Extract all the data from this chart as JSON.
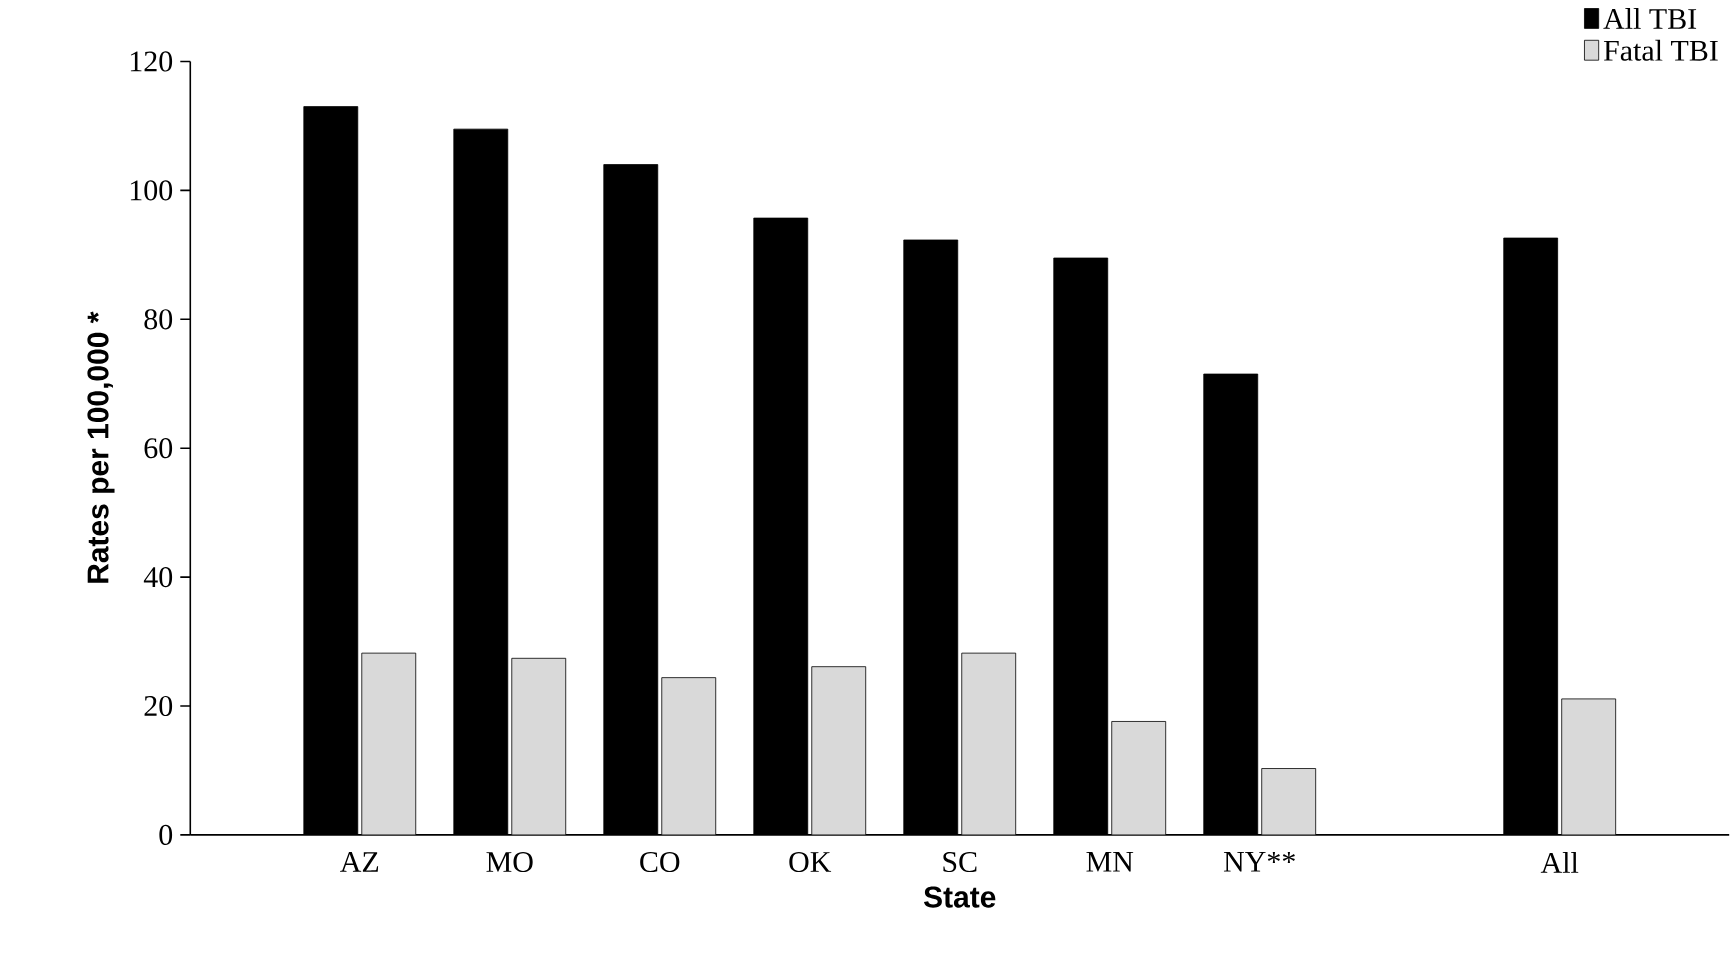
{
  "chart_data": {
    "type": "bar",
    "xlabel": "State",
    "ylabel": "Rates per 100,000 *",
    "categories": [
      "AZ",
      "MO",
      "CO",
      "OK",
      "SC",
      "MN",
      "NY**",
      null,
      "All"
    ],
    "series": [
      {
        "name": "All TBI",
        "color": "#000000",
        "values": [
          113,
          109.5,
          104,
          95.7,
          92.3,
          89.5,
          71.5,
          null,
          92.6
        ]
      },
      {
        "name": "Fatal TBI",
        "color": "#d9d9d9",
        "values": [
          28.2,
          27.4,
          24.4,
          26.1,
          28.2,
          17.6,
          10.3,
          null,
          21.1
        ]
      }
    ],
    "ylim": [
      0,
      120
    ],
    "yticks": [
      0,
      20,
      40,
      60,
      80,
      100,
      120
    ],
    "legend": "top right",
    "grid": false
  }
}
